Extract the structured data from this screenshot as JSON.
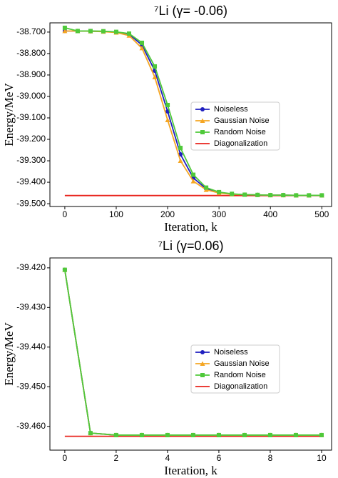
{
  "chart_data": [
    {
      "type": "line",
      "title": "⁷Li (γ= -0.06)",
      "x_label": "Iteration, k",
      "y_label": "Energy/MeV",
      "x": [
        0,
        25,
        50,
        75,
        100,
        125,
        150,
        175,
        200,
        225,
        250,
        275,
        300,
        325,
        350,
        375,
        400,
        425,
        450,
        475,
        500
      ],
      "series": [
        {
          "name": "Noiseless",
          "color": "#1f1fbf",
          "marker": "circle",
          "values": [
            -38.695,
            -38.695,
            -38.696,
            -38.697,
            -38.7,
            -38.71,
            -38.76,
            -38.88,
            -39.07,
            -39.27,
            -39.38,
            -39.43,
            -39.448,
            -39.455,
            -39.458,
            -39.459,
            -39.46,
            -39.46,
            -39.461,
            -39.461,
            -39.461
          ]
        },
        {
          "name": "Gaussian Noise",
          "color": "#f5a623",
          "marker": "triangle",
          "values": [
            -38.695,
            -38.695,
            -38.696,
            -38.698,
            -38.702,
            -38.716,
            -38.775,
            -38.91,
            -39.11,
            -39.3,
            -39.395,
            -39.435,
            -39.45,
            -39.456,
            -39.458,
            -39.459,
            -39.46,
            -39.46,
            -39.461,
            -39.461,
            -39.461
          ]
        },
        {
          "name": "Random Noise",
          "color": "#4fc93a",
          "marker": "square",
          "values": [
            -38.68,
            -38.695,
            -38.695,
            -38.696,
            -38.699,
            -38.707,
            -38.75,
            -38.86,
            -39.04,
            -39.24,
            -39.365,
            -39.425,
            -39.446,
            -39.454,
            -39.458,
            -39.459,
            -39.46,
            -39.46,
            -39.461,
            -39.461,
            -39.461
          ]
        },
        {
          "name": "Diagonalization",
          "color": "#e8221b",
          "marker": "none",
          "values": [
            -39.462,
            -39.462,
            -39.462,
            -39.462,
            -39.462,
            -39.462,
            -39.462,
            -39.462,
            -39.462,
            -39.462,
            -39.462,
            -39.462,
            -39.462,
            -39.462,
            -39.462,
            -39.462,
            -39.462,
            -39.462,
            -39.462,
            -39.462,
            -39.462
          ]
        }
      ],
      "xlim": [
        -29,
        519
      ],
      "xticks": [
        0,
        100,
        200,
        300,
        400,
        500
      ],
      "ylim": [
        -39.513,
        -38.657
      ],
      "yticks": [
        {
          "value": -38.7,
          "label": "-38.700"
        },
        {
          "value": -38.8,
          "label": "-38.800"
        },
        {
          "value": -38.9,
          "label": "-38.900"
        },
        {
          "value": -39.0,
          "label": "-39.000"
        },
        {
          "value": -39.1,
          "label": "-39.100"
        },
        {
          "value": -39.2,
          "label": "-39.200"
        },
        {
          "value": -39.3,
          "label": "-39.300"
        },
        {
          "value": -39.4,
          "label": "-39.400"
        },
        {
          "value": -39.5,
          "label": "-39.500"
        }
      ],
      "legend": "center right"
    },
    {
      "type": "line",
      "title": "⁷Li (γ=0.06)",
      "x_label": "Iteration, k",
      "y_label": "Energy/MeV",
      "x": [
        0,
        1,
        2,
        3,
        4,
        5,
        6,
        7,
        8,
        9,
        10
      ],
      "series": [
        {
          "name": "Noiseless",
          "color": "#1f1fbf",
          "marker": "circle",
          "values": [
            -39.4205,
            -39.4617,
            -39.4622,
            -39.4622,
            -39.4622,
            -39.4622,
            -39.4622,
            -39.4622,
            -39.4622,
            -39.4622,
            -39.4622
          ]
        },
        {
          "name": "Gaussian Noise",
          "color": "#f5a623",
          "marker": "triangle",
          "values": [
            -39.4205,
            -39.4617,
            -39.4622,
            -39.4622,
            -39.4622,
            -39.4622,
            -39.4622,
            -39.4622,
            -39.4622,
            -39.4622,
            -39.4622
          ]
        },
        {
          "name": "Random Noise",
          "color": "#4fc93a",
          "marker": "square",
          "values": [
            -39.4205,
            -39.4617,
            -39.4622,
            -39.4622,
            -39.4622,
            -39.4622,
            -39.4622,
            -39.4622,
            -39.4622,
            -39.4622,
            -39.4622
          ]
        },
        {
          "name": "Diagonalization",
          "color": "#e8221b",
          "marker": "none",
          "values": [
            -39.4625,
            -39.4625,
            -39.4625,
            -39.4625,
            -39.4625,
            -39.4625,
            -39.4625,
            -39.4625,
            -39.4625,
            -39.4625,
            -39.4625
          ]
        }
      ],
      "xlim": [
        -0.58,
        10.39
      ],
      "xticks": [
        0,
        2,
        4,
        6,
        8,
        10
      ],
      "ylim": [
        -39.466,
        -39.4175
      ],
      "yticks": [
        {
          "value": -39.42,
          "label": "-39.420"
        },
        {
          "value": -39.43,
          "label": "-39.430"
        },
        {
          "value": -39.44,
          "label": "-39.440"
        },
        {
          "value": -39.45,
          "label": "-39.450"
        },
        {
          "value": -39.46,
          "label": "-39.460"
        }
      ],
      "legend": "center right"
    }
  ]
}
